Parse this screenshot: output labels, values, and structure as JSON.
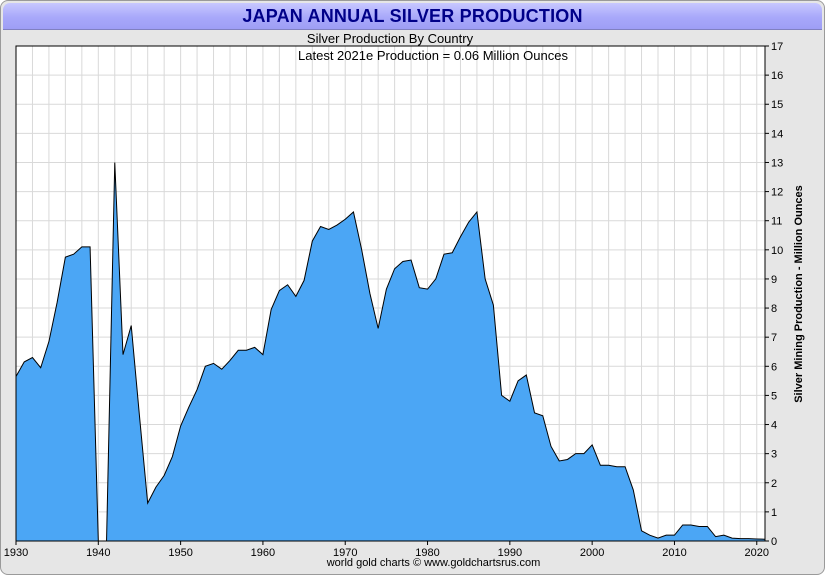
{
  "footer": "world gold charts © www.goldchartsrus.com",
  "colors": {
    "area_fill": "#4ba6f5",
    "area_stroke": "#000000",
    "grid": "#d9d9d9",
    "title_text": "#000088"
  },
  "chart_data": {
    "type": "area",
    "title": "JAPAN ANNUAL SILVER PRODUCTION",
    "subtitle": "Silver Production By Country",
    "annotation": "Latest 2021e Production = 0.06 Million Ounces",
    "xlabel": "",
    "ylabel": "Silver Mining Production - Million Ounces",
    "xlim": [
      1930,
      2021
    ],
    "ylim": [
      0,
      17
    ],
    "grid": true,
    "y_axis_side": "right",
    "x_ticks": [
      1930,
      1940,
      1950,
      1960,
      1970,
      1980,
      1990,
      2000,
      2010,
      2020
    ],
    "y_ticks": [
      0,
      1,
      2,
      3,
      4,
      5,
      6,
      7,
      8,
      9,
      10,
      11,
      12,
      13,
      14,
      15,
      16,
      17
    ],
    "series": [
      {
        "name": "Japan",
        "x": [
          1930,
          1931,
          1932,
          1933,
          1934,
          1935,
          1936,
          1937,
          1938,
          1939,
          1940,
          1941,
          1942,
          1943,
          1944,
          1945,
          1946,
          1947,
          1948,
          1949,
          1950,
          1951,
          1952,
          1953,
          1954,
          1955,
          1956,
          1957,
          1958,
          1959,
          1960,
          1961,
          1962,
          1963,
          1964,
          1965,
          1966,
          1967,
          1968,
          1969,
          1970,
          1971,
          1972,
          1973,
          1974,
          1975,
          1976,
          1977,
          1978,
          1979,
          1980,
          1981,
          1982,
          1983,
          1984,
          1985,
          1986,
          1987,
          1988,
          1989,
          1990,
          1991,
          1992,
          1993,
          1994,
          1995,
          1996,
          1997,
          1998,
          1999,
          2000,
          2001,
          2002,
          2003,
          2004,
          2005,
          2006,
          2007,
          2008,
          2009,
          2010,
          2011,
          2012,
          2013,
          2014,
          2015,
          2016,
          2017,
          2018,
          2019,
          2020,
          2021
        ],
        "values": [
          5.65,
          6.15,
          6.3,
          5.95,
          6.85,
          8.2,
          9.75,
          9.85,
          10.1,
          10.1,
          0.0,
          0.0,
          13.0,
          6.4,
          7.4,
          4.3,
          1.3,
          1.85,
          2.25,
          2.9,
          3.95,
          4.6,
          5.2,
          6.0,
          6.1,
          5.9,
          6.2,
          6.55,
          6.55,
          6.65,
          6.4,
          7.95,
          8.6,
          8.8,
          8.4,
          8.95,
          10.3,
          10.8,
          10.7,
          10.85,
          11.05,
          11.3,
          10.0,
          8.5,
          7.3,
          8.65,
          9.35,
          9.6,
          9.65,
          8.7,
          8.65,
          9.0,
          9.85,
          9.9,
          10.45,
          10.95,
          11.3,
          9.0,
          8.1,
          5.0,
          4.8,
          5.5,
          5.7,
          4.4,
          4.3,
          3.25,
          2.75,
          2.8,
          3.0,
          3.0,
          3.3,
          2.6,
          2.6,
          2.55,
          2.55,
          1.75,
          0.35,
          0.2,
          0.1,
          0.2,
          0.2,
          0.55,
          0.55,
          0.5,
          0.5,
          0.15,
          0.2,
          0.1,
          0.08,
          0.08,
          0.07,
          0.06
        ]
      }
    ]
  }
}
